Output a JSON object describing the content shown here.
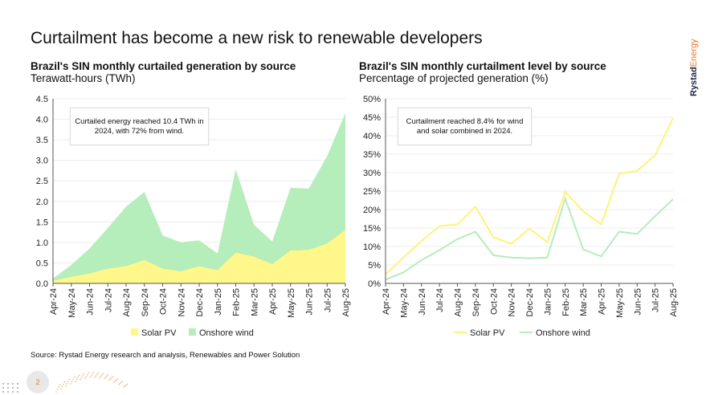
{
  "title": "Curtailment has become a new risk to renewable developers",
  "logo": {
    "part1": "Rystad",
    "part2": "Energy"
  },
  "source": "Source: Rystad Energy research and analysis, Renewables and Power Solution",
  "page_number": "2",
  "colors": {
    "solar": "#fff78a",
    "wind": "#b5edbb",
    "solar_line": "#fff27a",
    "wind_line": "#b5edbb",
    "accent": "#e07a2e"
  },
  "chart_data": [
    {
      "type": "area",
      "stacked": true,
      "title": "Brazil's SIN monthly curtailed generation by source",
      "subtitle": "Terawatt-hours (TWh)",
      "categories": [
        "Apr-24",
        "May-24",
        "Jun-24",
        "Jul-24",
        "Aug-24",
        "Sep-24",
        "Oct-24",
        "Nov-24",
        "Dec-24",
        "Jan-25",
        "Feb-25",
        "Mar-25",
        "Apr-25",
        "May-25",
        "Jun-25",
        "Jul-25",
        "Aug-25"
      ],
      "yticks": [
        "0.0",
        "0.5",
        "1.0",
        "1.5",
        "2.0",
        "2.5",
        "3.0",
        "3.5",
        "4.0",
        "4.5"
      ],
      "ylim": [
        0,
        4.5
      ],
      "grid": true,
      "legend": "bottom",
      "annotation": "Curtailed energy reached 10.4 TWh in 2024, with 72% from wind.",
      "series": [
        {
          "name": "Solar PV",
          "values": [
            0.06,
            0.16,
            0.24,
            0.36,
            0.42,
            0.57,
            0.36,
            0.29,
            0.42,
            0.32,
            0.75,
            0.65,
            0.47,
            0.8,
            0.82,
            0.97,
            1.3
          ]
        },
        {
          "name": "Onshore wind",
          "values": [
            0.06,
            0.29,
            0.61,
            0.99,
            1.45,
            1.66,
            0.81,
            0.71,
            0.63,
            0.41,
            2.03,
            0.78,
            0.55,
            1.53,
            1.49,
            2.13,
            2.85
          ]
        }
      ]
    },
    {
      "type": "line",
      "title": "Brazil's SIN monthly curtailment level by source",
      "subtitle": "Percentage of projected generation (%)",
      "categories": [
        "Apr-24",
        "May-24",
        "Jun-24",
        "Jul-24",
        "Aug-24",
        "Sep-24",
        "Oct-24",
        "Nov-24",
        "Dec-24",
        "Jan-25",
        "Feb-25",
        "Mar-25",
        "Apr-25",
        "May-25",
        "Jun-25",
        "Jul-25",
        "Aug-25"
      ],
      "yticks": [
        "0%",
        "5%",
        "10%",
        "15%",
        "20%",
        "25%",
        "30%",
        "35%",
        "40%",
        "45%",
        "50%"
      ],
      "ylim": [
        0,
        50
      ],
      "grid": true,
      "legend": "bottom",
      "annotation": "Curtailment reached 8.4% for wind and solar combined in 2024.",
      "series": [
        {
          "name": "Solar PV",
          "values": [
            2.5,
            7,
            11.5,
            15.5,
            16,
            20.8,
            12.5,
            10.7,
            14.8,
            11.2,
            24.8,
            19.5,
            16,
            29.7,
            30.5,
            34.7,
            44.8
          ]
        },
        {
          "name": "Onshore wind",
          "values": [
            1,
            3,
            6.3,
            9,
            12,
            14,
            7.6,
            7,
            6.8,
            7,
            23,
            9.2,
            7.3,
            14,
            13.4,
            18.2,
            22.8
          ]
        }
      ]
    }
  ]
}
